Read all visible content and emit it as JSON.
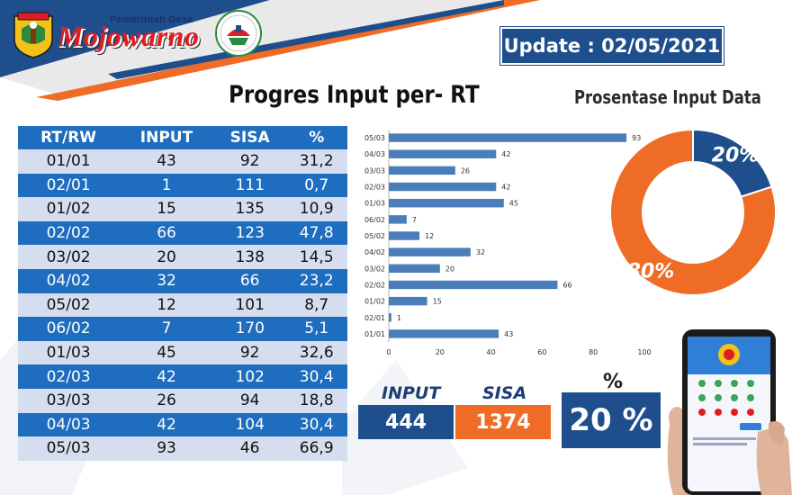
{
  "header": {
    "org_subtitle": "Pemerintah Desa",
    "org_name": "Mojowarno",
    "update_label": "Update : 02/05/2021"
  },
  "main": {
    "title": "Progres Input per- RT",
    "pie_title": "Prosentase Input Data"
  },
  "table": {
    "columns": [
      "RT/RW",
      "INPUT",
      "SISA",
      "%"
    ],
    "rows": [
      [
        "01/01",
        "43",
        "92",
        "31,2"
      ],
      [
        "02/01",
        "1",
        "111",
        "0,7"
      ],
      [
        "01/02",
        "15",
        "135",
        "10,9"
      ],
      [
        "02/02",
        "66",
        "123",
        "47,8"
      ],
      [
        "03/02",
        "20",
        "138",
        "14,5"
      ],
      [
        "04/02",
        "32",
        "66",
        "23,2"
      ],
      [
        "05/02",
        "12",
        "101",
        "8,7"
      ],
      [
        "06/02",
        "7",
        "170",
        "5,1"
      ],
      [
        "01/03",
        "45",
        "92",
        "32,6"
      ],
      [
        "02/03",
        "42",
        "102",
        "30,4"
      ],
      [
        "03/03",
        "26",
        "94",
        "18,8"
      ],
      [
        "04/03",
        "42",
        "104",
        "30,4"
      ],
      [
        "05/03",
        "93",
        "46",
        "66,9"
      ]
    ]
  },
  "chart_data": [
    {
      "type": "bar",
      "orientation": "horizontal",
      "categories": [
        "05/03",
        "04/03",
        "03/03",
        "02/03",
        "01/03",
        "06/02",
        "05/02",
        "04/02",
        "03/02",
        "02/02",
        "01/02",
        "02/01",
        "01/01"
      ],
      "values": [
        93,
        42,
        26,
        42,
        45,
        7,
        12,
        32,
        20,
        66,
        15,
        1,
        43
      ],
      "xlim": [
        0,
        100
      ],
      "xticks": [
        0,
        20,
        40,
        60,
        80,
        100
      ],
      "color": "#4a7ebb",
      "data_labels": true,
      "grid": false
    },
    {
      "type": "pie",
      "variant": "donut",
      "labels": [
        "20%",
        "80%"
      ],
      "values": [
        20,
        80
      ],
      "colors": [
        "#1f4e8c",
        "#ee6c25"
      ]
    }
  ],
  "summary": {
    "input_label": "INPUT",
    "input_value": "444",
    "sisa_label": "SISA",
    "sisa_value": "1374",
    "pct_label": "%",
    "pct_value": "20 %"
  },
  "colors": {
    "blue_dark": "#1f4e8c",
    "blue_row": "#1f6dbe",
    "row_light": "#d5deef",
    "orange": "#ee6c25",
    "bar_blue": "#4a7ebb",
    "brand_red": "#e31b23"
  }
}
